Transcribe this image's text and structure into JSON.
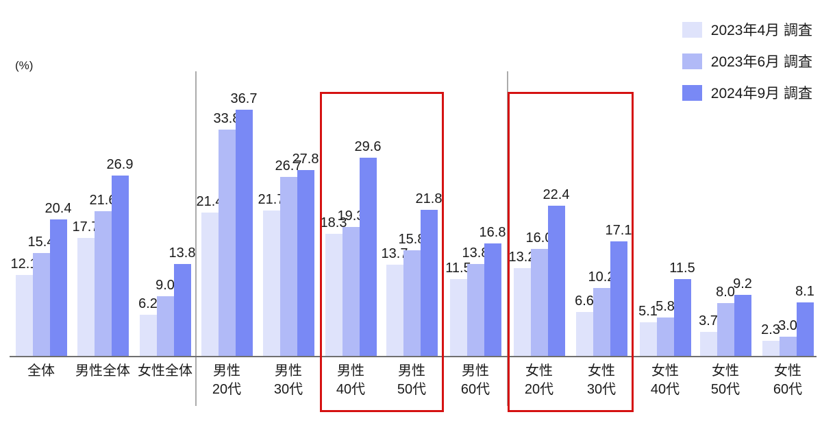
{
  "chart_data": {
    "type": "bar",
    "unit_label": "(%)",
    "legend_position": "top-right",
    "grid": false,
    "ylim": [
      0,
      40
    ],
    "value_label_decimals": 1,
    "categories": [
      "全体",
      "男性全体",
      "女性全体",
      "男性\n20代",
      "男性\n30代",
      "男性\n40代",
      "男性\n50代",
      "男性\n60代",
      "女性\n20代",
      "女性\n30代",
      "女性\n40代",
      "女性\n50代",
      "女性\n60代"
    ],
    "series": [
      {
        "name": "2023年4月 調査",
        "color": "#dfe3fb",
        "values": [
          12.1,
          17.7,
          6.2,
          21.4,
          21.7,
          18.3,
          13.7,
          11.5,
          13.2,
          6.6,
          5.1,
          3.7,
          2.3
        ]
      },
      {
        "name": "2023年6月 調査",
        "color": "#b1baf7",
        "values": [
          15.4,
          21.6,
          9.0,
          33.8,
          26.7,
          19.3,
          15.8,
          13.8,
          16.0,
          10.2,
          5.8,
          8.0,
          3.0
        ]
      },
      {
        "name": "2024年9月 調査",
        "color": "#7989f5",
        "values": [
          20.4,
          26.9,
          13.8,
          36.7,
          27.8,
          29.6,
          21.8,
          16.8,
          22.4,
          17.1,
          11.5,
          9.2,
          8.1
        ]
      }
    ],
    "highlight_boxes": [
      {
        "groups": [
          "男性40代",
          "男性50代"
        ],
        "from_index": 5,
        "to_index": 6,
        "color": "#d51212"
      },
      {
        "groups": [
          "女性20代",
          "女性30代"
        ],
        "from_index": 8,
        "to_index": 9,
        "color": "#d51212"
      }
    ],
    "section_dividers_after_index": [
      2,
      7
    ],
    "axis_color": "#6f6f6f",
    "divider_color": "#ababab",
    "text_color": "#1a1a1a"
  }
}
